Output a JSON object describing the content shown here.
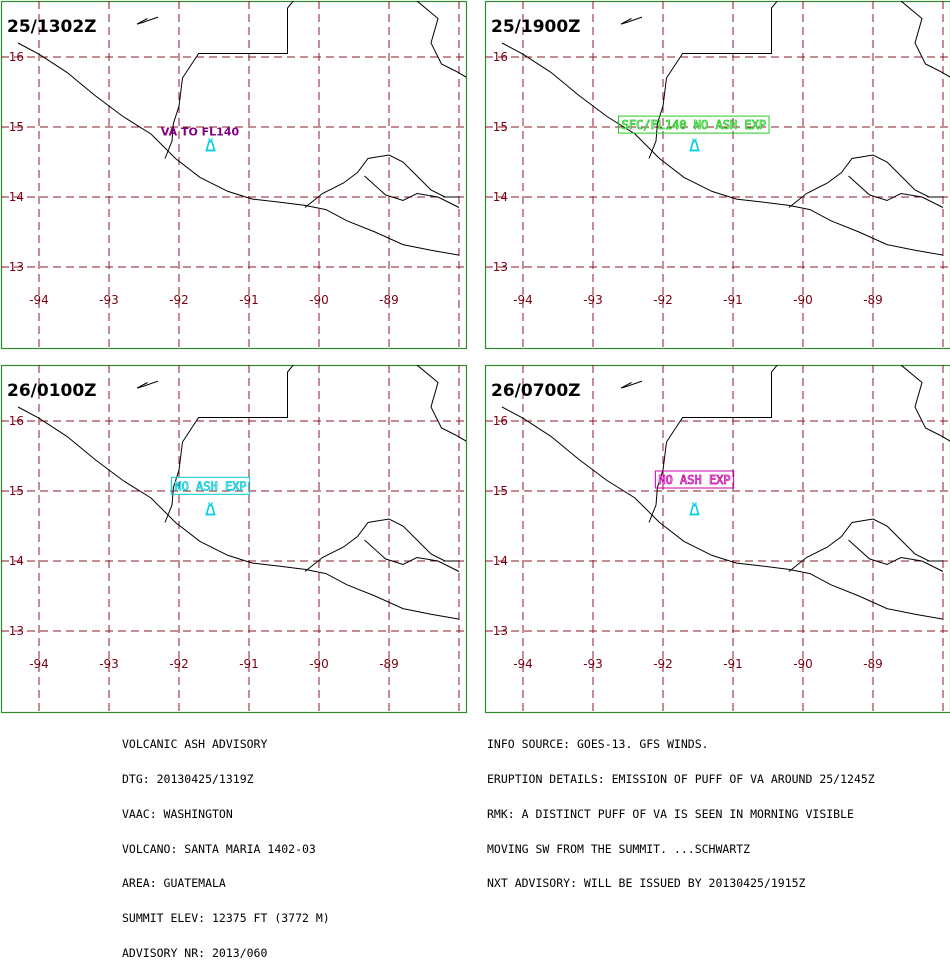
{
  "colors": {
    "frame": "#2e8b2e",
    "grid": "#8b1a2a",
    "coast": "#000000",
    "volcano": "#00d0e0"
  },
  "panels": [
    {
      "title": "25/1302Z",
      "label": "VA TO FL140",
      "label_color": "#800080",
      "boxed": false,
      "label_lat": 14.88,
      "label_lon": -91.7
    },
    {
      "title": "25/1900Z",
      "label": "SFC/FL140 NO ASH EXP",
      "label_color": "#22cc22",
      "boxed": true,
      "label_lat": 14.97,
      "label_lon": -91.56
    },
    {
      "title": "26/0100Z",
      "label": "NO ASH EXP",
      "label_color": "#00c8d8",
      "boxed": true,
      "label_lat": 15.01,
      "label_lon": -91.55
    },
    {
      "title": "26/0700Z",
      "label": "NO ASH EXP",
      "label_color": "#cc00aa",
      "boxed": true,
      "label_lat": 15.1,
      "label_lon": -91.55
    }
  ],
  "map": {
    "lat_labels": [
      "16",
      "15",
      "14",
      "13"
    ],
    "lon_labels": [
      "-94",
      "-93",
      "-92",
      "-91",
      "-90",
      "-89"
    ],
    "volcano_icon": "volcano-icon",
    "volcano_lat": 14.75,
    "volcano_lon": -91.55
  },
  "advisory_left": [
    "VOLCANIC ASH ADVISORY",
    "DTG: 20130425/1319Z",
    "VAAC: WASHINGTON",
    "VOLCANO: SANTA MARIA 1402-03",
    "AREA: GUATEMALA",
    "SUMMIT ELEV: 12375 FT (3772 M)",
    "ADVISORY NR: 2013/060"
  ],
  "advisory_right": [
    "INFO SOURCE: GOES-13. GFS WINDS.",
    "ERUPTION DETAILS: EMISSION OF PUFF OF VA AROUND 25/1245Z",
    "RMK: A DISTINCT PUFF OF VA IS SEEN IN MORNING VISIBLE",
    "MOVING SW FROM THE SUMMIT. ...SCHWARTZ",
    "NXT ADVISORY: WILL BE ISSUED BY 20130425/1915Z"
  ]
}
